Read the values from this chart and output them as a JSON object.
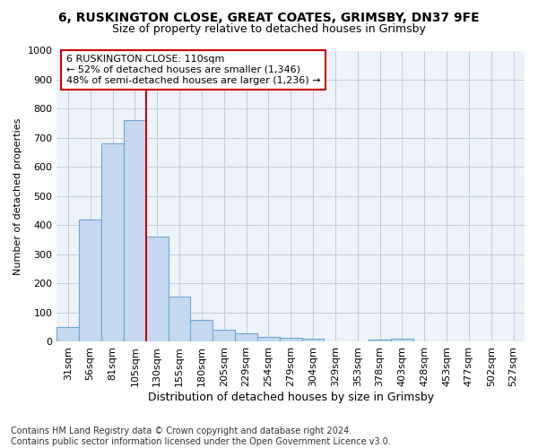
{
  "title_line1": "6, RUSKINGTON CLOSE, GREAT COATES, GRIMSBY, DN37 9FE",
  "title_line2": "Size of property relative to detached houses in Grimsby",
  "xlabel": "Distribution of detached houses by size in Grimsby",
  "ylabel": "Number of detached properties",
  "footnote": "Contains HM Land Registry data © Crown copyright and database right 2024.\nContains public sector information licensed under the Open Government Licence v3.0.",
  "bar_labels": [
    "31sqm",
    "56sqm",
    "81sqm",
    "105sqm",
    "130sqm",
    "155sqm",
    "180sqm",
    "205sqm",
    "229sqm",
    "254sqm",
    "279sqm",
    "304sqm",
    "329sqm",
    "353sqm",
    "378sqm",
    "403sqm",
    "428sqm",
    "453sqm",
    "477sqm",
    "502sqm",
    "527sqm"
  ],
  "bar_values": [
    50,
    420,
    680,
    760,
    360,
    155,
    75,
    40,
    30,
    18,
    15,
    10,
    0,
    0,
    8,
    10,
    0,
    0,
    0,
    0,
    0
  ],
  "bar_color": "#c5d8f0",
  "bar_edge_color": "#6fa8d4",
  "ylim": [
    0,
    1000
  ],
  "yticks": [
    0,
    100,
    200,
    300,
    400,
    500,
    600,
    700,
    800,
    900,
    1000
  ],
  "annotation_text": "6 RUSKINGTON CLOSE: 110sqm\n← 52% of detached houses are smaller (1,346)\n48% of semi-detached houses are larger (1,236) →",
  "vline_after_index": 3,
  "annotation_box_color": "#ffffff",
  "annotation_box_edge": "#cc0000",
  "vline_color": "#cc0000",
  "background_color": "#ffffff",
  "plot_bg_color": "#eef3fa",
  "grid_color": "#c0ccdd",
  "title_fontsize": 10,
  "subtitle_fontsize": 9,
  "ylabel_fontsize": 8,
  "xlabel_fontsize": 9,
  "tick_fontsize": 8,
  "annot_fontsize": 8,
  "footnote_fontsize": 7
}
